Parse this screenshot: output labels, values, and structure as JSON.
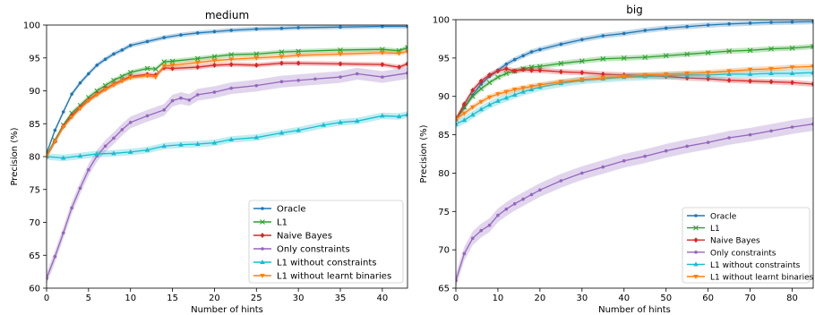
{
  "chart_data": [
    {
      "type": "line",
      "title": "medium",
      "xlabel": "Number of hints",
      "ylabel": "Precision (%)",
      "xlim": [
        0,
        43
      ],
      "ylim": [
        60,
        100
      ],
      "xticks": [
        0,
        5,
        10,
        15,
        20,
        25,
        30,
        35,
        40
      ],
      "yticks": [
        60,
        65,
        70,
        75,
        80,
        85,
        90,
        95,
        100
      ],
      "legend_position": "lower-right",
      "series": [
        {
          "name": "Oracle",
          "color": "#1f77b4",
          "marker": "point",
          "x": [
            0,
            1,
            2,
            3,
            4,
            5,
            6,
            7,
            8,
            9,
            10,
            12,
            14,
            16,
            18,
            20,
            22,
            25,
            28,
            30,
            35,
            40,
            43
          ],
          "y": [
            80.5,
            84,
            86.8,
            89.5,
            91.2,
            92.6,
            93.9,
            94.8,
            95.6,
            96.2,
            96.9,
            97.5,
            98.1,
            98.5,
            98.8,
            99.0,
            99.2,
            99.4,
            99.5,
            99.6,
            99.7,
            99.8,
            99.8
          ]
        },
        {
          "name": "L1",
          "color": "#2ca02c",
          "marker": "x",
          "x": [
            0,
            1,
            2,
            3,
            4,
            5,
            6,
            7,
            8,
            9,
            10,
            12,
            13,
            14,
            15,
            18,
            20,
            22,
            25,
            28,
            30,
            35,
            40,
            42,
            43
          ],
          "y": [
            80.2,
            82.5,
            84.8,
            86.6,
            87.8,
            89.0,
            90.0,
            90.8,
            91.6,
            92.2,
            92.8,
            93.4,
            93.3,
            94.4,
            94.5,
            94.9,
            95.2,
            95.5,
            95.6,
            95.9,
            96.0,
            96.2,
            96.3,
            96.1,
            96.6
          ]
        },
        {
          "name": "Naive Bayes",
          "color": "#d62728",
          "marker": "diamond",
          "x": [
            0,
            1,
            2,
            3,
            4,
            5,
            6,
            7,
            8,
            9,
            10,
            12,
            13,
            14,
            15,
            18,
            20,
            22,
            25,
            28,
            30,
            35,
            40,
            42,
            43
          ],
          "y": [
            80.0,
            82.3,
            84.6,
            86.2,
            87.5,
            88.6,
            89.5,
            90.3,
            91.0,
            91.6,
            92.2,
            92.5,
            92.4,
            93.5,
            93.4,
            93.6,
            93.9,
            94.0,
            93.9,
            94.2,
            94.2,
            94.1,
            94.0,
            93.6,
            94.1
          ]
        },
        {
          "name": "Only constraints",
          "color": "#9467bd",
          "marker": "point",
          "x": [
            0,
            1,
            2,
            3,
            4,
            5,
            6,
            7,
            8,
            9,
            10,
            12,
            14,
            15,
            16,
            17,
            18,
            20,
            22,
            25,
            28,
            30,
            32,
            35,
            37,
            40,
            43
          ],
          "y": [
            61.5,
            64.8,
            68.4,
            72.2,
            75.2,
            78.0,
            80.1,
            81.6,
            82.8,
            84.1,
            85.2,
            86.2,
            87.1,
            88.5,
            88.9,
            88.6,
            89.4,
            89.8,
            90.4,
            90.8,
            91.4,
            91.6,
            91.8,
            92.1,
            92.6,
            92.1,
            92.7
          ]
        },
        {
          "name": "L1 without constraints",
          "color": "#17becf",
          "marker": "triangle",
          "x": [
            0,
            2,
            4,
            6,
            8,
            10,
            12,
            14,
            16,
            18,
            20,
            22,
            25,
            28,
            30,
            33,
            35,
            37,
            40,
            42,
            43
          ],
          "y": [
            80.0,
            79.8,
            80.1,
            80.4,
            80.5,
            80.7,
            81.0,
            81.6,
            81.8,
            81.9,
            82.1,
            82.6,
            82.9,
            83.6,
            84.0,
            84.8,
            85.2,
            85.4,
            86.2,
            86.1,
            86.4
          ]
        },
        {
          "name": "L1 without learnt binaries",
          "color": "#ff7f0e",
          "marker": "triangle-down",
          "x": [
            0,
            1,
            2,
            3,
            4,
            5,
            6,
            7,
            8,
            9,
            10,
            12,
            13,
            14,
            15,
            18,
            20,
            22,
            25,
            28,
            30,
            35,
            40,
            42,
            43
          ],
          "y": [
            80.0,
            82.3,
            84.5,
            86.0,
            87.3,
            88.5,
            89.4,
            90.2,
            90.9,
            91.5,
            92.0,
            92.3,
            92.1,
            93.8,
            93.9,
            94.3,
            94.6,
            94.8,
            95.0,
            95.2,
            95.4,
            95.6,
            95.8,
            95.7,
            96.0
          ]
        }
      ]
    },
    {
      "type": "line",
      "title": "big",
      "xlabel": "Number of hints",
      "ylabel": "Precision (%)",
      "xlim": [
        0,
        85
      ],
      "ylim": [
        65,
        100
      ],
      "xticks": [
        0,
        10,
        20,
        30,
        40,
        50,
        60,
        70,
        80
      ],
      "yticks": [
        65,
        70,
        75,
        80,
        85,
        90,
        95,
        100
      ],
      "legend_position": "lower-right",
      "series": [
        {
          "name": "Oracle",
          "color": "#1f77b4",
          "marker": "point",
          "x": [
            0,
            2,
            4,
            6,
            8,
            10,
            12,
            14,
            16,
            18,
            20,
            25,
            30,
            35,
            40,
            45,
            50,
            55,
            60,
            65,
            70,
            75,
            80,
            85
          ],
          "y": [
            87.0,
            88.5,
            90.2,
            91.6,
            92.6,
            93.4,
            94.2,
            94.8,
            95.3,
            95.8,
            96.1,
            96.8,
            97.4,
            97.9,
            98.2,
            98.6,
            98.9,
            99.1,
            99.3,
            99.45,
            99.55,
            99.65,
            99.7,
            99.75
          ]
        },
        {
          "name": "L1",
          "color": "#2ca02c",
          "marker": "x",
          "x": [
            0,
            2,
            4,
            6,
            8,
            10,
            12,
            14,
            16,
            18,
            20,
            25,
            30,
            35,
            40,
            45,
            50,
            55,
            60,
            65,
            70,
            75,
            80,
            85
          ],
          "y": [
            87.0,
            88.6,
            90.0,
            91.0,
            91.8,
            92.5,
            93.0,
            93.3,
            93.6,
            93.8,
            93.9,
            94.3,
            94.6,
            94.9,
            95.0,
            95.1,
            95.3,
            95.5,
            95.7,
            95.9,
            96.0,
            96.2,
            96.3,
            96.5
          ]
        },
        {
          "name": "Naive Bayes",
          "color": "#d62728",
          "marker": "diamond",
          "x": [
            0,
            2,
            4,
            6,
            8,
            10,
            12,
            14,
            16,
            18,
            20,
            25,
            30,
            35,
            40,
            45,
            50,
            55,
            60,
            65,
            70,
            75,
            80,
            85
          ],
          "y": [
            87.0,
            89.0,
            90.8,
            92.0,
            92.8,
            93.3,
            93.6,
            93.3,
            93.5,
            93.4,
            93.4,
            93.2,
            93.1,
            92.9,
            92.8,
            92.7,
            92.6,
            92.4,
            92.3,
            92.1,
            92.0,
            91.9,
            91.8,
            91.6
          ]
        },
        {
          "name": "Only constraints",
          "color": "#9467bd",
          "marker": "point",
          "x": [
            0,
            2,
            4,
            6,
            8,
            10,
            12,
            14,
            16,
            18,
            20,
            25,
            30,
            35,
            40,
            45,
            50,
            55,
            60,
            65,
            70,
            75,
            80,
            85
          ],
          "y": [
            66.0,
            69.5,
            71.5,
            72.5,
            73.2,
            74.5,
            75.3,
            76.0,
            76.6,
            77.2,
            77.8,
            79.0,
            80.0,
            80.8,
            81.6,
            82.2,
            82.9,
            83.5,
            84.0,
            84.6,
            85.0,
            85.5,
            86.0,
            86.4
          ]
        },
        {
          "name": "L1 without constraints",
          "color": "#17becf",
          "marker": "triangle",
          "x": [
            0,
            2,
            4,
            6,
            8,
            10,
            12,
            14,
            16,
            18,
            20,
            25,
            30,
            35,
            40,
            45,
            50,
            55,
            60,
            65,
            70,
            75,
            80,
            85
          ],
          "y": [
            86.4,
            86.9,
            87.6,
            88.3,
            88.9,
            89.4,
            89.8,
            90.2,
            90.6,
            90.9,
            91.2,
            91.7,
            92.1,
            92.3,
            92.5,
            92.6,
            92.7,
            92.8,
            92.8,
            92.9,
            92.9,
            93.0,
            93.0,
            93.1
          ]
        },
        {
          "name": "L1 without learnt binaries",
          "color": "#ff7f0e",
          "marker": "triangle-down",
          "x": [
            0,
            2,
            4,
            6,
            8,
            10,
            12,
            14,
            16,
            18,
            20,
            25,
            30,
            35,
            40,
            45,
            50,
            55,
            60,
            65,
            70,
            75,
            80,
            85
          ],
          "y": [
            87.0,
            87.8,
            88.6,
            89.3,
            89.9,
            90.3,
            90.6,
            90.9,
            91.1,
            91.3,
            91.5,
            91.9,
            92.2,
            92.4,
            92.6,
            92.8,
            92.9,
            93.0,
            93.1,
            93.3,
            93.5,
            93.6,
            93.8,
            93.9
          ]
        }
      ]
    }
  ]
}
